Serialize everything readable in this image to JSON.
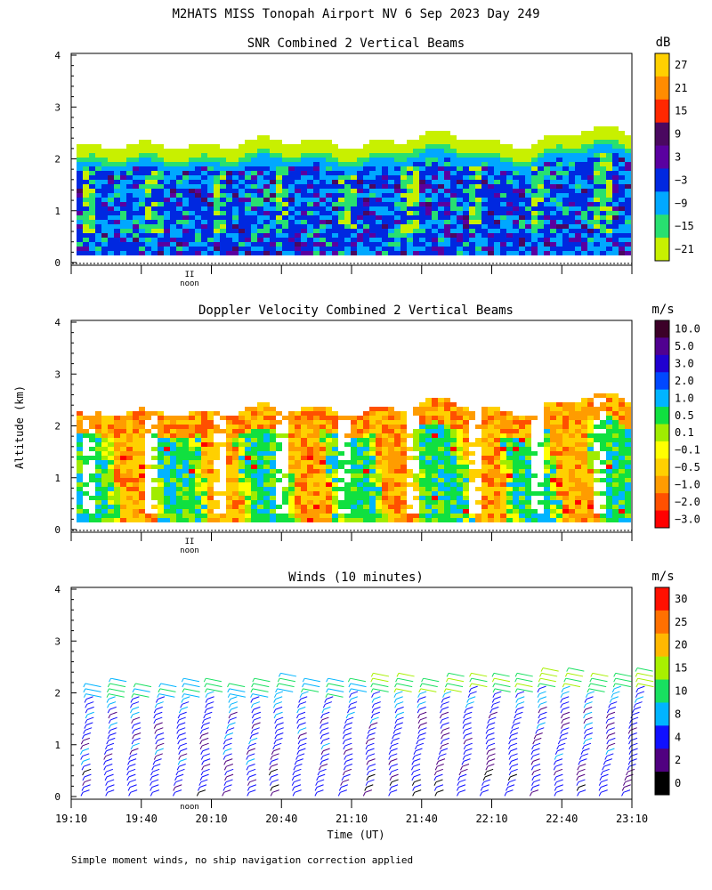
{
  "figure": {
    "title": "M2HATS MISS Tonopah Airport NV   6 Sep 2023 Day 249",
    "ylabel": "Altitude (km)",
    "xlabel": "Time (UT)",
    "footnote": "Simple moment winds, no ship navigation correction applied",
    "noon_label": "noon"
  },
  "chart_data": [
    {
      "type": "heatmap",
      "title": "SNR Combined 2 Vertical Beams",
      "unit": "dB",
      "ylim": [
        0,
        4
      ],
      "yticks": [
        "0",
        "1",
        "2",
        "3",
        "4"
      ],
      "colorbar": {
        "labels": [
          "27",
          "21",
          "15",
          "9",
          "3",
          "−3",
          "−9",
          "−15",
          "−21"
        ],
        "colors": [
          "#ffd000",
          "#ff8c00",
          "#ff2800",
          "#4a0860",
          "#5a00a0",
          "#0028e0",
          "#00a8ff",
          "#28e070",
          "#c8f000"
        ]
      }
    },
    {
      "type": "heatmap",
      "title": "Doppler Velocity Combined 2 Vertical Beams",
      "unit": "m/s",
      "ylim": [
        0,
        4
      ],
      "yticks": [
        "0",
        "1",
        "2",
        "3",
        "4"
      ],
      "colorbar": {
        "labels": [
          "10.0",
          "5.0",
          "3.0",
          "2.0",
          "1.0",
          "0.5",
          "0.1",
          "−0.1",
          "−0.5",
          "−1.0",
          "−2.0",
          "−3.0"
        ],
        "colors": [
          "#3c0028",
          "#500090",
          "#2000d0",
          "#0048ff",
          "#00b4ff",
          "#10e040",
          "#a0ec00",
          "#ffff00",
          "#ffd000",
          "#ff9c00",
          "#ff5000",
          "#ff0000"
        ]
      }
    },
    {
      "type": "scatter",
      "title": "Winds (10 minutes)",
      "unit": "m/s",
      "ylim": [
        0,
        4
      ],
      "yticks": [
        "0",
        "1",
        "2",
        "3",
        "4"
      ],
      "xticks": [
        "19:10",
        "19:40",
        "20:10",
        "20:40",
        "21:10",
        "21:40",
        "22:10",
        "22:40",
        "23:10"
      ],
      "colorbar": {
        "labels": [
          "30",
          "25",
          "20",
          "15",
          "10",
          "8",
          "4",
          "2",
          "0"
        ],
        "colors": [
          "#ff1000",
          "#ff7000",
          "#ffb800",
          "#a8f000",
          "#18e060",
          "#00b4ff",
          "#1010ff",
          "#500080",
          "#000000"
        ]
      }
    }
  ]
}
